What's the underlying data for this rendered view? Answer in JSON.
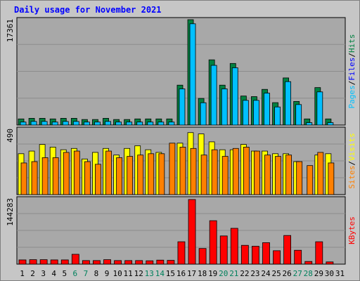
{
  "chart_data": [
    {
      "type": "bar",
      "title": "Daily usage for November 2021",
      "categories": [
        "1",
        "2",
        "3",
        "4",
        "5",
        "6",
        "7",
        "8",
        "9",
        "10",
        "11",
        "12",
        "13",
        "14",
        "15",
        "16",
        "17",
        "18",
        "19",
        "20",
        "21",
        "22",
        "23",
        "24",
        "25",
        "26",
        "27",
        "28",
        "29",
        "30",
        "31"
      ],
      "weekend_days": [
        "6",
        "7",
        "13",
        "14",
        "20",
        "21",
        "27",
        "28"
      ],
      "y_max_label": "17361",
      "ylim": [
        0,
        17361
      ],
      "series": [
        {
          "name": "Hits",
          "color": "#008040",
          "values": [
            900,
            1000,
            1000,
            900,
            1000,
            1000,
            800,
            800,
            1000,
            800,
            800,
            900,
            900,
            900,
            900,
            6500,
            17361,
            4300,
            10700,
            6500,
            10100,
            4700,
            4600,
            5800,
            3600,
            7700,
            3800,
            900,
            6100,
            900,
            0
          ]
        },
        {
          "name": "Files",
          "color": "#0000ff",
          "values": [
            0,
            0,
            0,
            0,
            0,
            0,
            0,
            0,
            0,
            0,
            0,
            0,
            0,
            0,
            0,
            0,
            0,
            0,
            0,
            0,
            0,
            0,
            0,
            0,
            0,
            0,
            0,
            0,
            0,
            0,
            0
          ]
        },
        {
          "name": "Pages",
          "color": "#00c0ff",
          "values": [
            500,
            600,
            600,
            500,
            600,
            600,
            500,
            500,
            600,
            500,
            500,
            500,
            500,
            500,
            500,
            6000,
            16800,
            3700,
            9900,
            6000,
            9500,
            4100,
            4100,
            5300,
            3000,
            7200,
            3400,
            400,
            5500,
            400,
            0
          ]
        }
      ],
      "axis_right": {
        "parts": [
          {
            "text": "Pages",
            "color": "#00c0ff"
          },
          {
            "text": "/",
            "color": "#000000"
          },
          {
            "text": "Files",
            "color": "#0000ff"
          },
          {
            "text": "/",
            "color": "#000000"
          },
          {
            "text": "Hits",
            "color": "#008040"
          }
        ]
      }
    },
    {
      "type": "bar",
      "y_max_label": "490",
      "ylim": [
        0,
        490
      ],
      "series": [
        {
          "name": "Visits",
          "color": "#ffff00",
          "values": [
            310,
            330,
            380,
            360,
            340,
            350,
            270,
            320,
            350,
            300,
            350,
            370,
            340,
            320,
            0,
            390,
            470,
            460,
            400,
            340,
            340,
            380,
            330,
            330,
            310,
            310,
            250,
            0,
            300,
            310,
            0
          ]
        },
        {
          "name": "Sites",
          "color": "#ff8000",
          "values": [
            240,
            250,
            280,
            280,
            320,
            330,
            250,
            230,
            330,
            280,
            290,
            300,
            310,
            310,
            390,
            360,
            350,
            300,
            340,
            290,
            350,
            360,
            330,
            300,
            290,
            300,
            250,
            220,
            320,
            240,
            0
          ]
        }
      ],
      "axis_right": {
        "parts": [
          {
            "text": "Sites",
            "color": "#ff8000"
          },
          {
            "text": "/",
            "color": "#000000"
          },
          {
            "text": "Visits",
            "color": "#ffff00"
          }
        ]
      }
    },
    {
      "type": "bar",
      "y_max_label": "144283",
      "ylim": [
        0,
        144283
      ],
      "series": [
        {
          "name": "KBytes",
          "color": "#ff0000",
          "values": [
            9500,
            10000,
            10000,
            9500,
            9500,
            22000,
            8000,
            8000,
            10000,
            8000,
            8000,
            8000,
            7500,
            9000,
            8500,
            50000,
            144283,
            35000,
            97000,
            63000,
            80000,
            42000,
            40000,
            48000,
            30000,
            64000,
            31000,
            6000,
            50000,
            5000,
            0
          ]
        }
      ],
      "axis_right": {
        "parts": [
          {
            "text": "KBytes",
            "color": "#ff0000"
          }
        ]
      }
    }
  ],
  "colors": {
    "background": "#c6c6c6",
    "plot_area": "#a8a8a8",
    "title": "#0000ff",
    "weekday_label": "#000000",
    "weekend_label": "#00805c"
  }
}
